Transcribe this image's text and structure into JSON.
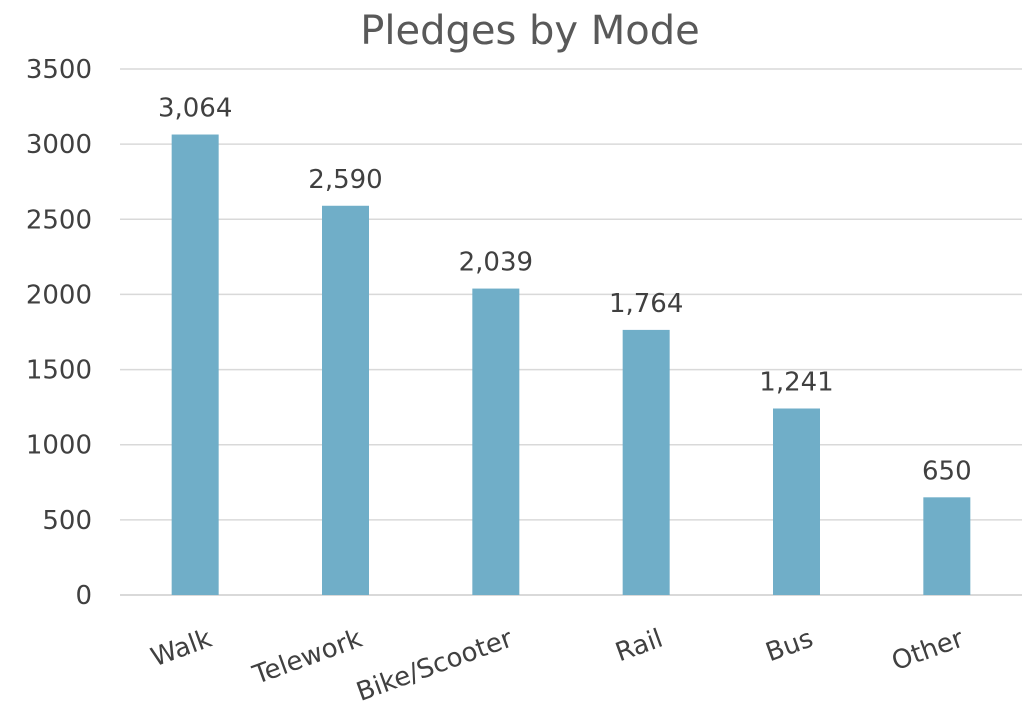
{
  "chart_data": {
    "type": "bar",
    "title": "Pledges by Mode",
    "xlabel": "",
    "ylabel": "",
    "categories": [
      "Walk",
      "Telework",
      "Bike/Scooter",
      "Rail",
      "Bus",
      "Other"
    ],
    "values": [
      3064,
      2590,
      2039,
      1764,
      1241,
      650
    ],
    "data_labels": [
      "3,064",
      "2,590",
      "2,039",
      "1,764",
      "1,241",
      "650"
    ],
    "ylim": [
      0,
      3500
    ],
    "yticks": [
      0,
      500,
      1000,
      1500,
      2000,
      2500,
      3000,
      3500
    ],
    "grid": true,
    "legend": "none",
    "bar_color": "#70AEC8"
  }
}
